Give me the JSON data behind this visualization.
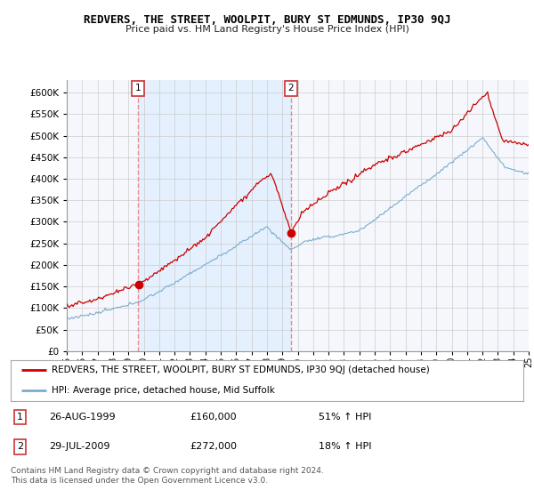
{
  "title": "REDVERS, THE STREET, WOOLPIT, BURY ST EDMUNDS, IP30 9QJ",
  "subtitle": "Price paid vs. HM Land Registry's House Price Index (HPI)",
  "ylim": [
    0,
    630000
  ],
  "yticks": [
    0,
    50000,
    100000,
    150000,
    200000,
    250000,
    300000,
    350000,
    400000,
    450000,
    500000,
    550000,
    600000
  ],
  "x_start_year": 1995,
  "x_end_year": 2025,
  "vline1_year": 1999.65,
  "vline2_year": 2009.57,
  "legend_red": "REDVERS, THE STREET, WOOLPIT, BURY ST EDMUNDS, IP30 9QJ (detached house)",
  "legend_blue": "HPI: Average price, detached house, Mid Suffolk",
  "table_row1_num": "1",
  "table_row1_date": "26-AUG-1999",
  "table_row1_price": "£160,000",
  "table_row1_hpi": "51% ↑ HPI",
  "table_row2_num": "2",
  "table_row2_date": "29-JUL-2009",
  "table_row2_price": "£272,000",
  "table_row2_hpi": "18% ↑ HPI",
  "footer": "Contains HM Land Registry data © Crown copyright and database right 2024.\nThis data is licensed under the Open Government Licence v3.0.",
  "red_color": "#cc0000",
  "blue_color": "#7aadcc",
  "vline_color": "#ee8888",
  "grid_color": "#cccccc",
  "shade_color": "#ddeeff",
  "plot_bg": "#f5f7fc"
}
